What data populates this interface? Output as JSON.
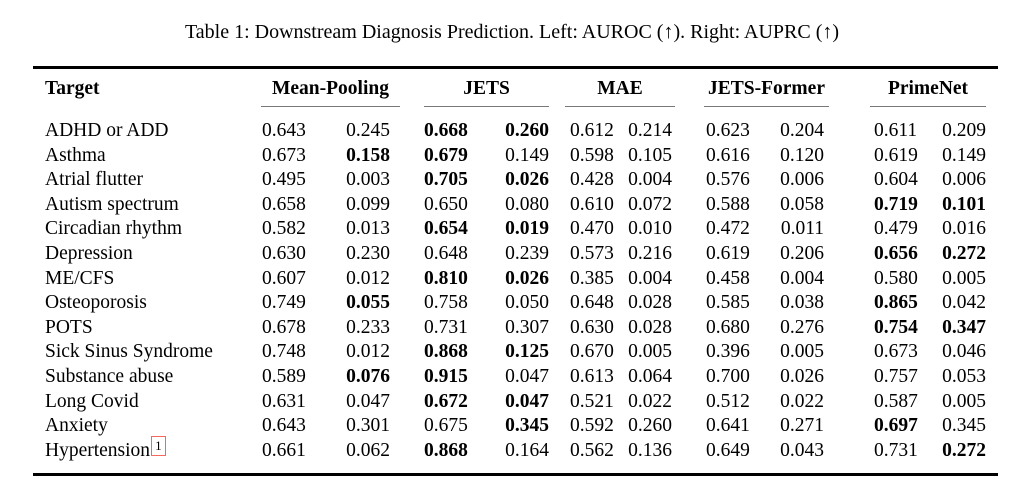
{
  "caption": "Table 1: Downstream Diagnosis Prediction. Left: AUROC (↑). Right: AUPRC (↑)",
  "colors": {
    "text": "#000000",
    "heavy_rule": "#000000",
    "cmidrule": "#787878",
    "footnote_box_border": "#f4685e"
  },
  "table": {
    "target_header": "Target",
    "group_headers": [
      "Mean-Pooling",
      "JETS",
      "MAE",
      "JETS-Former",
      "PrimeNet"
    ],
    "metrics_per_group": [
      "AUROC",
      "AUPRC"
    ],
    "rows": [
      {
        "target": "ADHD or ADD",
        "values": [
          "0.643",
          "0.245",
          "0.668",
          "0.260",
          "0.612",
          "0.214",
          "0.623",
          "0.204",
          "0.611",
          "0.209"
        ],
        "bold": [
          2,
          3
        ]
      },
      {
        "target": "Asthma",
        "values": [
          "0.673",
          "0.158",
          "0.679",
          "0.149",
          "0.598",
          "0.105",
          "0.616",
          "0.120",
          "0.619",
          "0.149"
        ],
        "bold": [
          1,
          2
        ]
      },
      {
        "target": "Atrial flutter",
        "values": [
          "0.495",
          "0.003",
          "0.705",
          "0.026",
          "0.428",
          "0.004",
          "0.576",
          "0.006",
          "0.604",
          "0.006"
        ],
        "bold": [
          2,
          3
        ]
      },
      {
        "target": "Autism spectrum",
        "values": [
          "0.658",
          "0.099",
          "0.650",
          "0.080",
          "0.610",
          "0.072",
          "0.588",
          "0.058",
          "0.719",
          "0.101"
        ],
        "bold": [
          8,
          9
        ]
      },
      {
        "target": "Circadian rhythm",
        "values": [
          "0.582",
          "0.013",
          "0.654",
          "0.019",
          "0.470",
          "0.010",
          "0.472",
          "0.011",
          "0.479",
          "0.016"
        ],
        "bold": [
          2,
          3
        ]
      },
      {
        "target": "Depression",
        "values": [
          "0.630",
          "0.230",
          "0.648",
          "0.239",
          "0.573",
          "0.216",
          "0.619",
          "0.206",
          "0.656",
          "0.272"
        ],
        "bold": [
          8,
          9
        ]
      },
      {
        "target": "ME/CFS",
        "values": [
          "0.607",
          "0.012",
          "0.810",
          "0.026",
          "0.385",
          "0.004",
          "0.458",
          "0.004",
          "0.580",
          "0.005"
        ],
        "bold": [
          2,
          3
        ]
      },
      {
        "target": "Osteoporosis",
        "values": [
          "0.749",
          "0.055",
          "0.758",
          "0.050",
          "0.648",
          "0.028",
          "0.585",
          "0.038",
          "0.865",
          "0.042"
        ],
        "bold": [
          1,
          8
        ]
      },
      {
        "target": "POTS",
        "values": [
          "0.678",
          "0.233",
          "0.731",
          "0.307",
          "0.630",
          "0.028",
          "0.680",
          "0.276",
          "0.754",
          "0.347"
        ],
        "bold": [
          8,
          9
        ]
      },
      {
        "target": "Sick Sinus Syndrome",
        "values": [
          "0.748",
          "0.012",
          "0.868",
          "0.125",
          "0.670",
          "0.005",
          "0.396",
          "0.005",
          "0.673",
          "0.046"
        ],
        "bold": [
          2,
          3
        ]
      },
      {
        "target": "Substance abuse",
        "values": [
          "0.589",
          "0.076",
          "0.915",
          "0.047",
          "0.613",
          "0.064",
          "0.700",
          "0.026",
          "0.757",
          "0.053"
        ],
        "bold": [
          1,
          2
        ]
      },
      {
        "target": "Long Covid",
        "values": [
          "0.631",
          "0.047",
          "0.672",
          "0.047",
          "0.521",
          "0.022",
          "0.512",
          "0.022",
          "0.587",
          "0.005"
        ],
        "bold": [
          2,
          3
        ]
      },
      {
        "target": "Anxiety",
        "values": [
          "0.643",
          "0.301",
          "0.675",
          "0.345",
          "0.592",
          "0.260",
          "0.641",
          "0.271",
          "0.697",
          "0.345"
        ],
        "bold": [
          3,
          8
        ]
      },
      {
        "target": "Hypertension",
        "values": [
          "0.661",
          "0.062",
          "0.868",
          "0.164",
          "0.562",
          "0.136",
          "0.649",
          "0.043",
          "0.731",
          "0.272"
        ],
        "bold": [
          2,
          9
        ],
        "footnote": "1"
      }
    ]
  }
}
